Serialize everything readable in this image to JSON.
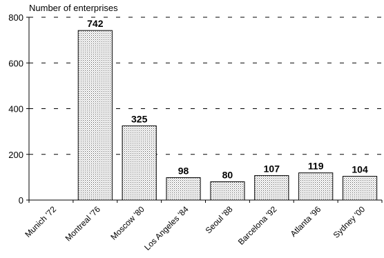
{
  "chart_data": {
    "type": "bar",
    "title": "",
    "ylabel": "Number of enterprises",
    "xlabel": "",
    "categories": [
      "Munich '72",
      "Montreal '76",
      "Moscow '80",
      "Los Angeles '84",
      "Seoul '88",
      "Barcelona '92",
      "Atlanta '96",
      "Sydney '00"
    ],
    "values": [
      null,
      742,
      325,
      98,
      80,
      107,
      119,
      104
    ],
    "data_labels": [
      "",
      "742",
      "325",
      "98",
      "80",
      "107",
      "119",
      "104"
    ],
    "ylim": [
      0,
      800
    ],
    "yticks": [
      0,
      200,
      400,
      600,
      800
    ],
    "grid": true,
    "grid_style": "dashed",
    "bar_pattern": "dotted",
    "colors": {
      "bar_fill": "#ffffff",
      "bar_dots": "#555555",
      "bar_stroke": "#000000",
      "grid": "#000000"
    }
  }
}
